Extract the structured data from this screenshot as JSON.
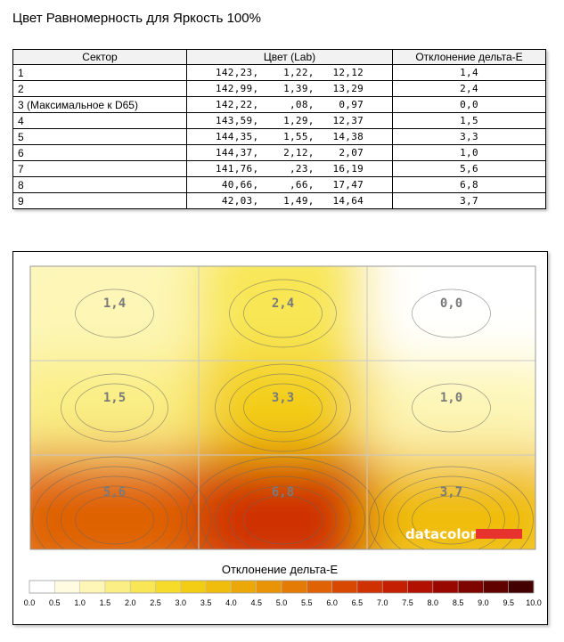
{
  "title": "Цвет Равномерность для Яркость 100%",
  "table": {
    "headers": [
      "Сектор",
      "Цвет (Lab)",
      "Отклонение дельта-E"
    ],
    "rows": [
      {
        "sector": "1",
        "lab": "142,23,    1,22,   12,12",
        "de": "1,4"
      },
      {
        "sector": "2",
        "lab": "142,99,    1,39,   13,29",
        "de": "2,4"
      },
      {
        "sector": "3 (Максимальное к D65)",
        "lab": "142,22,     ,08,    0,97",
        "de": "0,0"
      },
      {
        "sector": "4",
        "lab": "143,59,    1,29,   12,37",
        "de": "1,5"
      },
      {
        "sector": "5",
        "lab": "144,35,    1,55,   14,38",
        "de": "3,3"
      },
      {
        "sector": "6",
        "lab": "144,37,    2,12,    2,07",
        "de": "1,0"
      },
      {
        "sector": "7",
        "lab": "141,76,     ,23,   16,19",
        "de": "5,6"
      },
      {
        "sector": "8",
        "lab": " 40,66,     ,66,   17,47",
        "de": "6,8"
      },
      {
        "sector": "9",
        "lab": " 42,03,    1,49,   14,64",
        "de": "3,7"
      }
    ]
  },
  "chart_data": {
    "type": "heatmap",
    "xlabel": "Отклонение дельта-E",
    "grid_rows": 3,
    "grid_cols": 3,
    "values": [
      [
        1.4,
        2.4,
        0.0
      ],
      [
        1.5,
        3.3,
        1.0
      ],
      [
        5.6,
        6.8,
        3.7
      ]
    ],
    "cell_labels": [
      [
        "1,4",
        "2,4",
        "0,0"
      ],
      [
        "1,5",
        "3,3",
        "1,0"
      ],
      [
        "5,6",
        "6,8",
        "3,7"
      ]
    ],
    "scale_min": 0,
    "scale_max": 10,
    "scale_ticks": [
      "0.0",
      "0.5",
      "1.0",
      "1.5",
      "2.0",
      "2.5",
      "3.0",
      "3.5",
      "4.0",
      "4.5",
      "5.0",
      "5.5",
      "6.0",
      "6.5",
      "7.0",
      "7.5",
      "8.0",
      "8.5",
      "9.0",
      "9.5",
      "10.0"
    ],
    "colors": [
      "#ffffff",
      "#fefbe0",
      "#fdf6b6",
      "#faee84",
      "#f8e654",
      "#f6db2a",
      "#f3cd14",
      "#f0bd0c",
      "#eca809",
      "#e99307",
      "#e47b05",
      "#df6204",
      "#d94803",
      "#cf3102",
      "#c41f02",
      "#b21001",
      "#990800",
      "#7e0400",
      "#600200",
      "#420100"
    ],
    "logo": "datacolor",
    "logo_bar_color": "#e8322d"
  }
}
